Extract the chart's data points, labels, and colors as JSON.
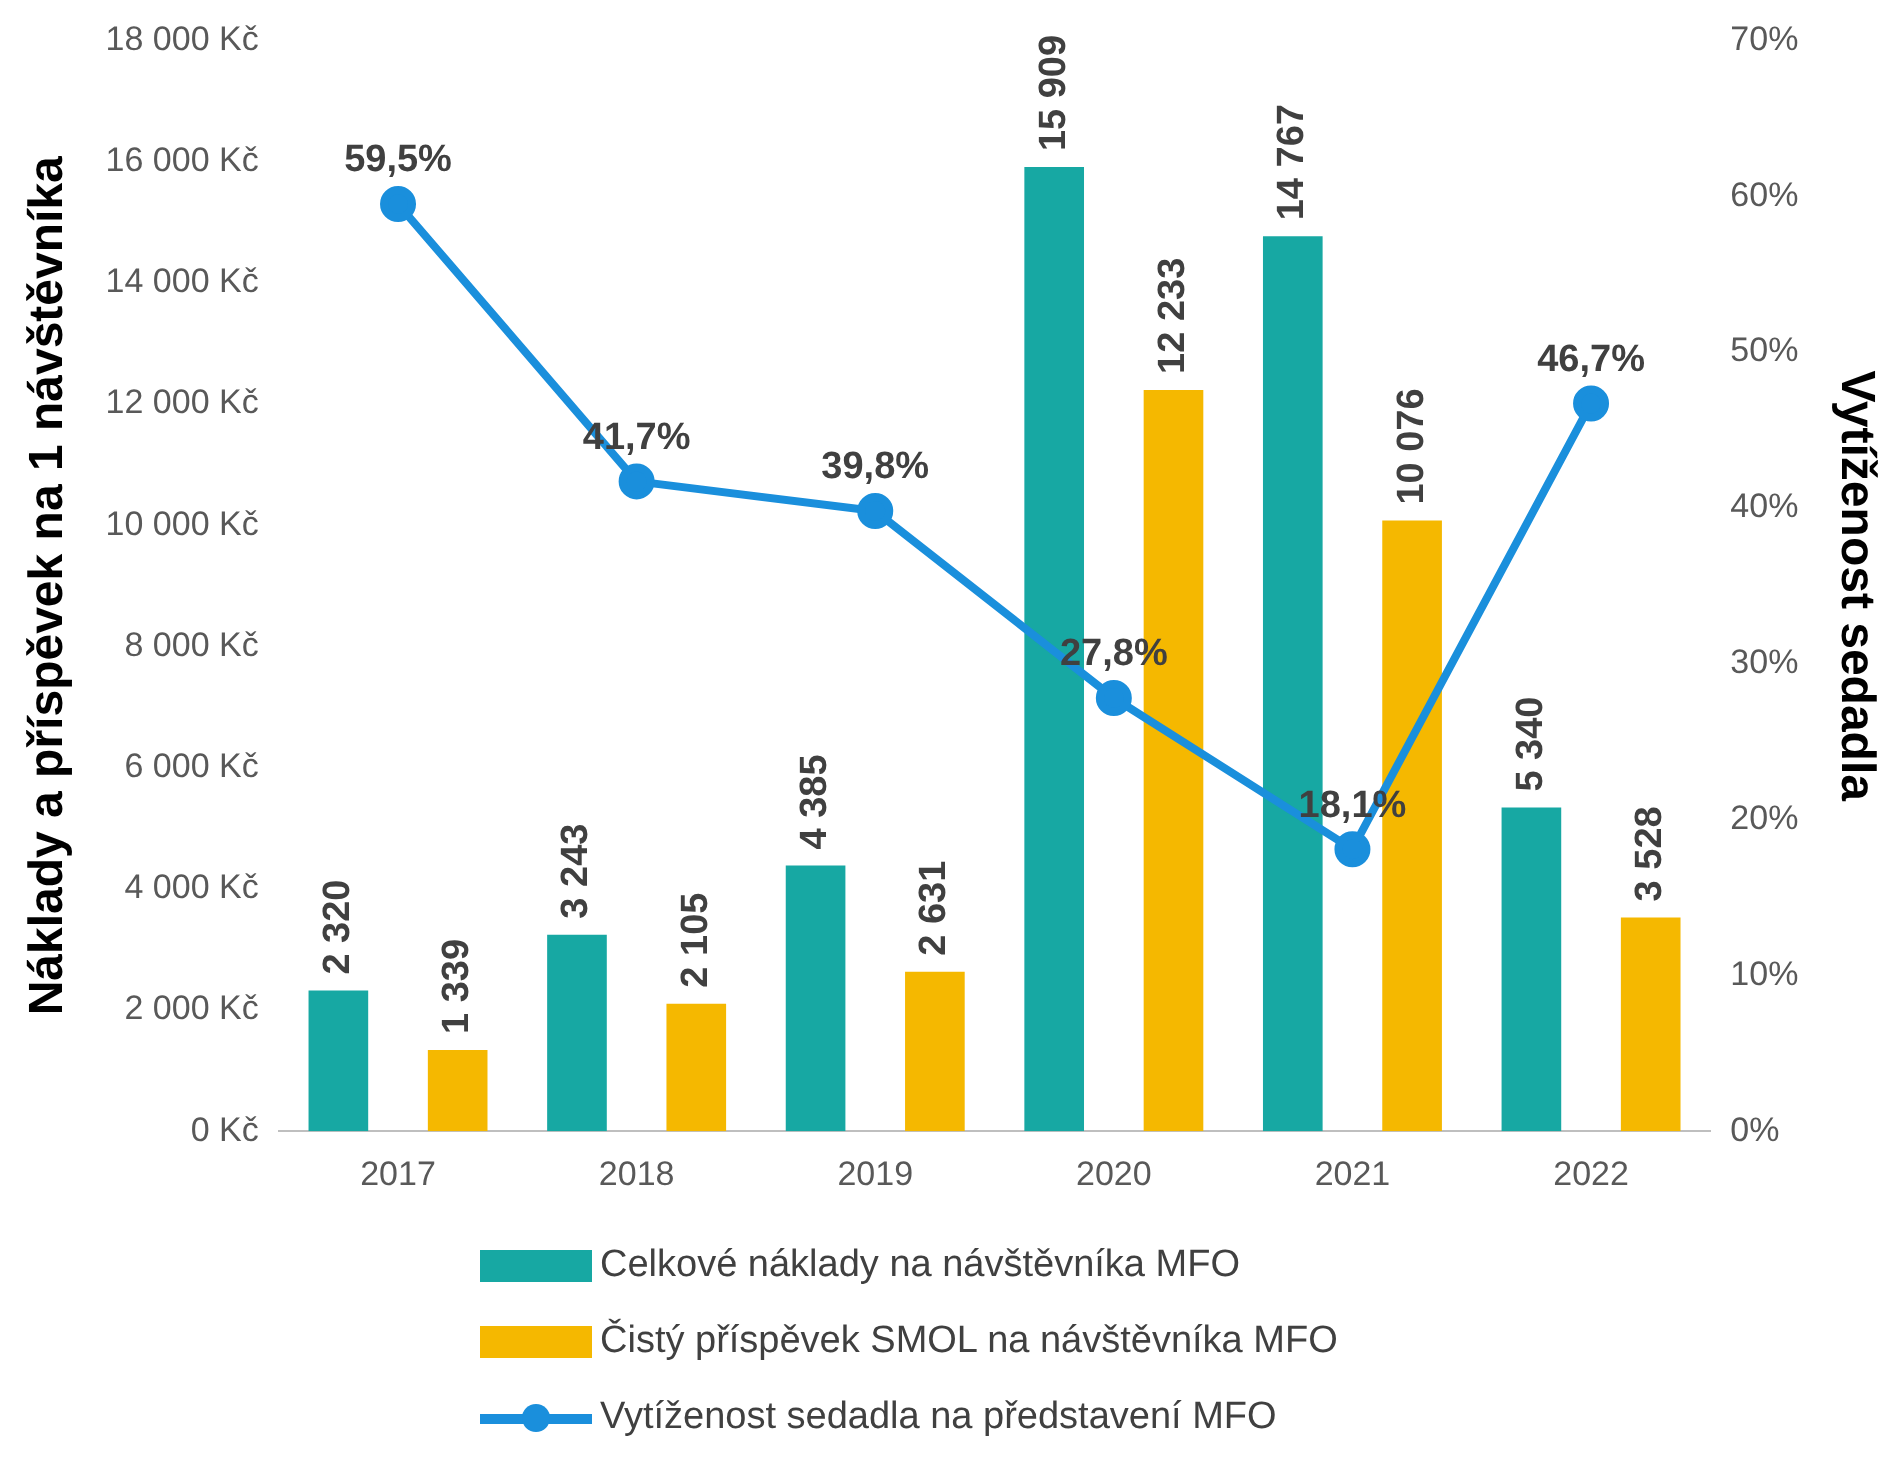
{
  "chart_data": {
    "type": "bar",
    "ylabel": "Náklady a příspěvek na 1 návštěvníka",
    "y2label": "Vytíženost sedadla",
    "categories": [
      "2017",
      "2018",
      "2019",
      "2020",
      "2021",
      "2022"
    ],
    "series": [
      {
        "name": "Celkové náklady na návštěvníka MFO",
        "color": "#17a8a3",
        "values": [
          2320,
          3243,
          4385,
          15909,
          14767,
          5340
        ],
        "value_labels": [
          "2 320",
          "3 243",
          "4 385",
          "15 909",
          "14 767",
          "5 340"
        ]
      },
      {
        "name": "Čistý příspěvek SMOL na návštěvníka MFO",
        "color": "#f5b800",
        "values": [
          1339,
          2105,
          2631,
          12233,
          10076,
          3528
        ],
        "value_labels": [
          "1 339",
          "2 105",
          "2 631",
          "12 233",
          "10 076",
          "3 528"
        ]
      },
      {
        "name": "Vytíženost sedadla na představení MFO",
        "type": "line",
        "axis": "y2",
        "color": "#1a8fdc",
        "marker": "circle",
        "values": [
          59.5,
          41.7,
          39.8,
          27.8,
          18.1,
          46.7
        ],
        "value_labels": [
          "59,5%",
          "41,7%",
          "39,8%",
          "27,8%",
          "18,1%",
          "46,7%"
        ]
      }
    ],
    "ylim": [
      0,
      18000
    ],
    "yticks": [
      {
        "value": 0,
        "label": "0 Kč"
      },
      {
        "value": 2000,
        "label": "2 000 Kč"
      },
      {
        "value": 4000,
        "label": "4 000 Kč"
      },
      {
        "value": 6000,
        "label": "6 000 Kč"
      },
      {
        "value": 8000,
        "label": "8 000 Kč"
      },
      {
        "value": 10000,
        "label": "10 000 Kč"
      },
      {
        "value": 12000,
        "label": "12 000 Kč"
      },
      {
        "value": 14000,
        "label": "14 000 Kč"
      },
      {
        "value": 16000,
        "label": "16 000 Kč"
      },
      {
        "value": 18000,
        "label": "18 000 Kč"
      }
    ],
    "y2lim": [
      0,
      70
    ],
    "y2ticks": [
      {
        "value": 0,
        "label": "0%"
      },
      {
        "value": 10,
        "label": "10%"
      },
      {
        "value": 20,
        "label": "20%"
      },
      {
        "value": 30,
        "label": "30%"
      },
      {
        "value": 40,
        "label": "40%"
      },
      {
        "value": 50,
        "label": "50%"
      },
      {
        "value": 60,
        "label": "60%"
      },
      {
        "value": 70,
        "label": "70%"
      }
    ],
    "grid": false,
    "legend": "bottom"
  }
}
